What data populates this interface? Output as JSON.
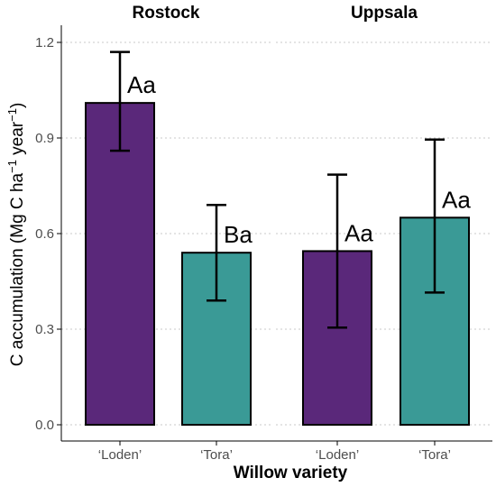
{
  "chart_data": {
    "type": "bar",
    "ylabel": "C accumulation (Mg C ha⁻¹ year⁻¹)",
    "xlabel": "Willow variety",
    "ylim": [
      0,
      1.23
    ],
    "yticks": [
      "0.0",
      "0.3",
      "0.6",
      "0.9",
      "1.2"
    ],
    "ytick_values": [
      0,
      0.3,
      0.6,
      0.9,
      1.2
    ],
    "grid": "horizontal dotted",
    "colors": {
      "Loden": "#5a287a",
      "Tora": "#3a9a96"
    },
    "panels": [
      {
        "title": "Rostock",
        "categories": [
          "‘Loden’",
          "‘Tora’"
        ],
        "values": [
          1.01,
          0.54
        ],
        "err_low": [
          0.86,
          0.39
        ],
        "err_high": [
          1.17,
          0.69
        ],
        "labels": [
          "Aa",
          "Ba"
        ]
      },
      {
        "title": "Uppsala",
        "categories": [
          "‘Loden’",
          "‘Tora’"
        ],
        "values": [
          0.545,
          0.65
        ],
        "err_low": [
          0.305,
          0.415
        ],
        "err_high": [
          0.785,
          0.895
        ],
        "labels": [
          "Aa",
          "Aa"
        ]
      }
    ]
  }
}
